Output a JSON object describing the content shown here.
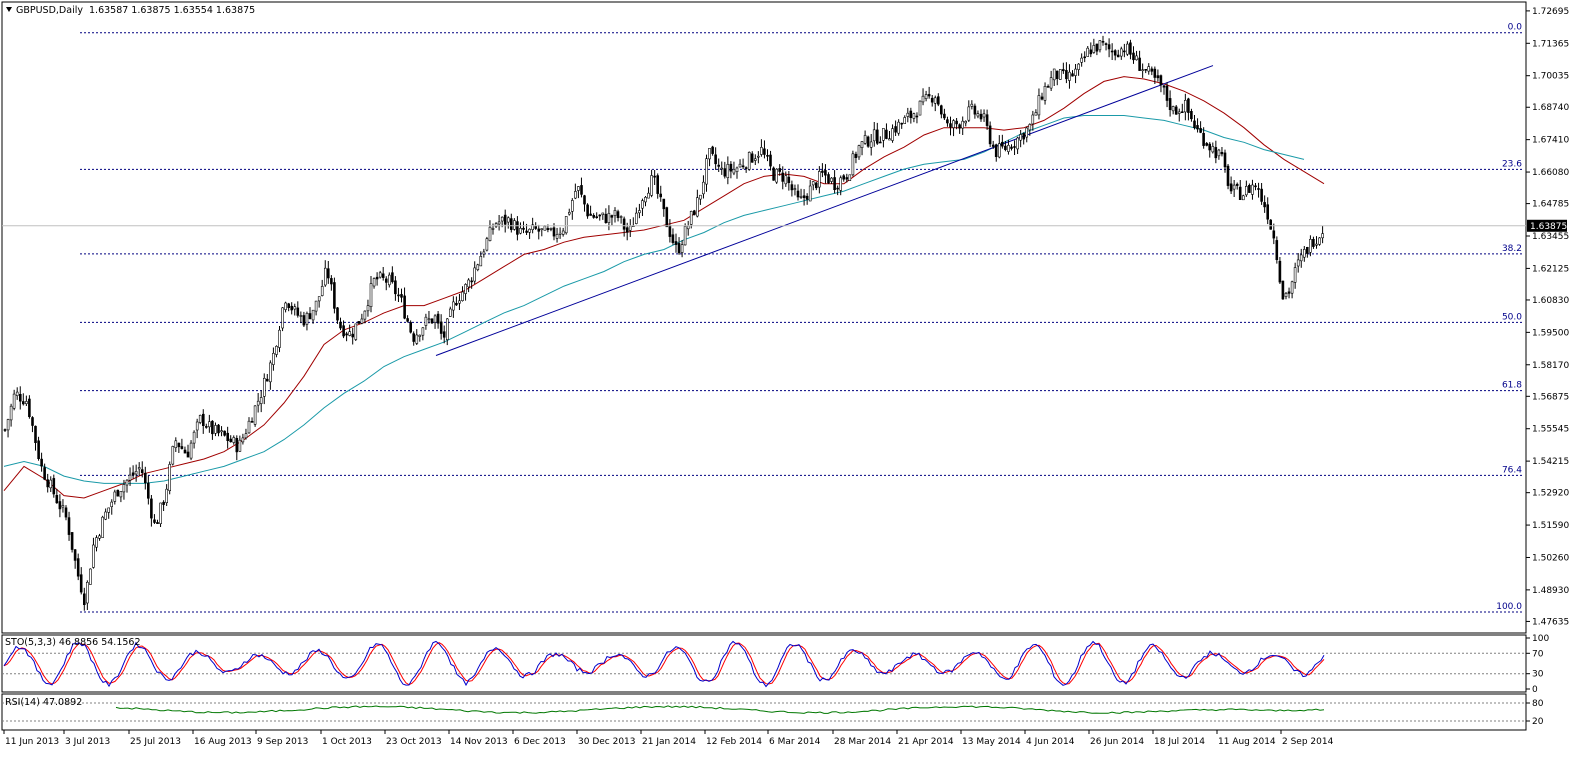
{
  "chart_header": {
    "symbol": "GBPUSD,Daily",
    "ohlc": "1.63587 1.63875 1.63554 1.63875"
  },
  "chart_data": [
    {
      "type": "candlestick",
      "name": "main-price-chart",
      "title": "GBPUSD,Daily",
      "ylim": [
        1.4716,
        1.7306
      ],
      "y_ticks": [
        "1.72695",
        "1.71365",
        "1.70035",
        "1.68740",
        "1.67410",
        "1.66080",
        "1.64785",
        "1.63455",
        "1.62125",
        "1.60830",
        "1.59500",
        "1.58170",
        "1.56875",
        "1.55545",
        "1.54215",
        "1.52920",
        "1.51590",
        "1.50260",
        "1.48930",
        "1.47635"
      ],
      "current_price_label": "1.63875",
      "x_ticks": [
        "11 Jun 2013",
        "3 Jul 2013",
        "25 Jul 2013",
        "16 Aug 2013",
        "9 Sep 2013",
        "1 Oct 2013",
        "23 Oct 2013",
        "14 Nov 2013",
        "6 Dec 2013",
        "30 Dec 2013",
        "21 Jan 2014",
        "12 Feb 2014",
        "6 Mar 2014",
        "28 Mar 2014",
        "21 Apr 2014",
        "13 May 2014",
        "4 Jun 2014",
        "26 Jun 2014",
        "18 Jul 2014",
        "11 Aug 2014",
        "2 Sep 2014"
      ],
      "fibonacci_levels": [
        {
          "label": "0.0",
          "price": 1.718
        },
        {
          "label": "23.6",
          "price": 1.6619
        },
        {
          "label": "38.2",
          "price": 1.6272
        },
        {
          "label": "50.0",
          "price": 1.5991
        },
        {
          "label": "61.8",
          "price": 1.5711
        },
        {
          "label": "76.4",
          "price": 1.5363
        },
        {
          "label": "100.0",
          "price": 1.4802
        }
      ],
      "trendline": {
        "from": {
          "date": "12 Nov 2013",
          "price": 1.5855
        },
        "to": {
          "date": "28 Jul 2014",
          "price": 1.7045
        }
      },
      "moving_average_fast_path": [
        [
          0,
          1.53
        ],
        [
          20,
          1.54
        ],
        [
          40,
          1.535
        ],
        [
          60,
          1.528
        ],
        [
          80,
          1.527
        ],
        [
          100,
          1.53
        ],
        [
          120,
          1.533
        ],
        [
          140,
          1.537
        ],
        [
          160,
          1.539
        ],
        [
          180,
          1.541
        ],
        [
          200,
          1.543
        ],
        [
          220,
          1.546
        ],
        [
          240,
          1.551
        ],
        [
          260,
          1.557
        ],
        [
          280,
          1.566
        ],
        [
          300,
          1.577
        ],
        [
          320,
          1.59
        ],
        [
          340,
          1.596
        ],
        [
          360,
          1.599
        ],
        [
          380,
          1.603
        ],
        [
          400,
          1.606
        ],
        [
          420,
          1.606
        ],
        [
          440,
          1.609
        ],
        [
          460,
          1.612
        ],
        [
          480,
          1.617
        ],
        [
          500,
          1.622
        ],
        [
          520,
          1.627
        ],
        [
          540,
          1.629
        ],
        [
          560,
          1.632
        ],
        [
          580,
          1.634
        ],
        [
          600,
          1.635
        ],
        [
          620,
          1.636
        ],
        [
          640,
          1.637
        ],
        [
          660,
          1.639
        ],
        [
          680,
          1.641
        ],
        [
          700,
          1.646
        ],
        [
          720,
          1.651
        ],
        [
          740,
          1.656
        ],
        [
          760,
          1.659
        ],
        [
          780,
          1.66
        ],
        [
          800,
          1.659
        ],
        [
          820,
          1.656
        ],
        [
          840,
          1.656
        ],
        [
          860,
          1.662
        ],
        [
          880,
          1.667
        ],
        [
          900,
          1.671
        ],
        [
          920,
          1.676
        ],
        [
          940,
          1.679
        ],
        [
          960,
          1.679
        ],
        [
          980,
          1.679
        ],
        [
          1000,
          1.678
        ],
        [
          1020,
          1.679
        ],
        [
          1040,
          1.682
        ],
        [
          1060,
          1.687
        ],
        [
          1080,
          1.693
        ],
        [
          1100,
          1.698
        ],
        [
          1120,
          1.7
        ],
        [
          1140,
          1.699
        ],
        [
          1160,
          1.697
        ],
        [
          1180,
          1.694
        ],
        [
          1200,
          1.69
        ],
        [
          1220,
          1.685
        ],
        [
          1240,
          1.679
        ],
        [
          1260,
          1.672
        ],
        [
          1280,
          1.666
        ],
        [
          1300,
          1.661
        ],
        [
          1320,
          1.656
        ]
      ],
      "moving_average_slow_path": [
        [
          0,
          1.54
        ],
        [
          20,
          1.542
        ],
        [
          40,
          1.54
        ],
        [
          60,
          1.536
        ],
        [
          80,
          1.534
        ],
        [
          100,
          1.533
        ],
        [
          120,
          1.533
        ],
        [
          140,
          1.533
        ],
        [
          160,
          1.534
        ],
        [
          180,
          1.536
        ],
        [
          200,
          1.538
        ],
        [
          220,
          1.54
        ],
        [
          240,
          1.543
        ],
        [
          260,
          1.546
        ],
        [
          280,
          1.551
        ],
        [
          300,
          1.557
        ],
        [
          320,
          1.564
        ],
        [
          340,
          1.57
        ],
        [
          360,
          1.575
        ],
        [
          380,
          1.581
        ],
        [
          400,
          1.585
        ],
        [
          420,
          1.588
        ],
        [
          440,
          1.591
        ],
        [
          460,
          1.595
        ],
        [
          480,
          1.599
        ],
        [
          500,
          1.603
        ],
        [
          520,
          1.606
        ],
        [
          540,
          1.61
        ],
        [
          560,
          1.614
        ],
        [
          580,
          1.617
        ],
        [
          600,
          1.62
        ],
        [
          620,
          1.624
        ],
        [
          640,
          1.627
        ],
        [
          660,
          1.629
        ],
        [
          680,
          1.633
        ],
        [
          700,
          1.636
        ],
        [
          720,
          1.64
        ],
        [
          740,
          1.643
        ],
        [
          760,
          1.645
        ],
        [
          780,
          1.647
        ],
        [
          800,
          1.649
        ],
        [
          820,
          1.651
        ],
        [
          840,
          1.653
        ],
        [
          860,
          1.656
        ],
        [
          880,
          1.659
        ],
        [
          900,
          1.662
        ],
        [
          920,
          1.664
        ],
        [
          940,
          1.665
        ],
        [
          960,
          1.666
        ],
        [
          980,
          1.669
        ],
        [
          1000,
          1.673
        ],
        [
          1020,
          1.677
        ],
        [
          1040,
          1.68
        ],
        [
          1060,
          1.683
        ],
        [
          1080,
          1.684
        ],
        [
          1100,
          1.684
        ],
        [
          1120,
          1.684
        ],
        [
          1140,
          1.683
        ],
        [
          1160,
          1.682
        ],
        [
          1180,
          1.68
        ],
        [
          1200,
          1.678
        ],
        [
          1220,
          1.675
        ],
        [
          1240,
          1.673
        ],
        [
          1260,
          1.67
        ],
        [
          1280,
          1.668
        ],
        [
          1300,
          1.666
        ]
      ]
    },
    {
      "type": "line",
      "name": "stochastic-panel",
      "label": "STO(5,3,3) 46.8856 54.1562",
      "ylim": [
        0,
        100
      ],
      "y_ticks": [
        "100",
        "70",
        "30",
        "0"
      ],
      "dashed_levels": [
        70,
        30
      ],
      "series": [
        {
          "color": "#0000cc"
        },
        {
          "color": "#ff0000"
        }
      ]
    },
    {
      "type": "line",
      "name": "rsi-panel",
      "label": "RSI(14) 47.0892",
      "ylim": [
        0,
        100
      ],
      "y_ticks": [
        "80",
        "20"
      ],
      "dashed_levels": [
        80,
        20
      ],
      "series": [
        {
          "color": "#007700"
        }
      ]
    }
  ],
  "colors": {
    "fib_line": "#000080",
    "ma_fast": "#a00000",
    "ma_slow": "#1a9aa8",
    "trendline": "#000099",
    "candle": "#000000",
    "sto_main": "#0000cc",
    "sto_signal": "#ff0000",
    "rsi": "#007700"
  }
}
